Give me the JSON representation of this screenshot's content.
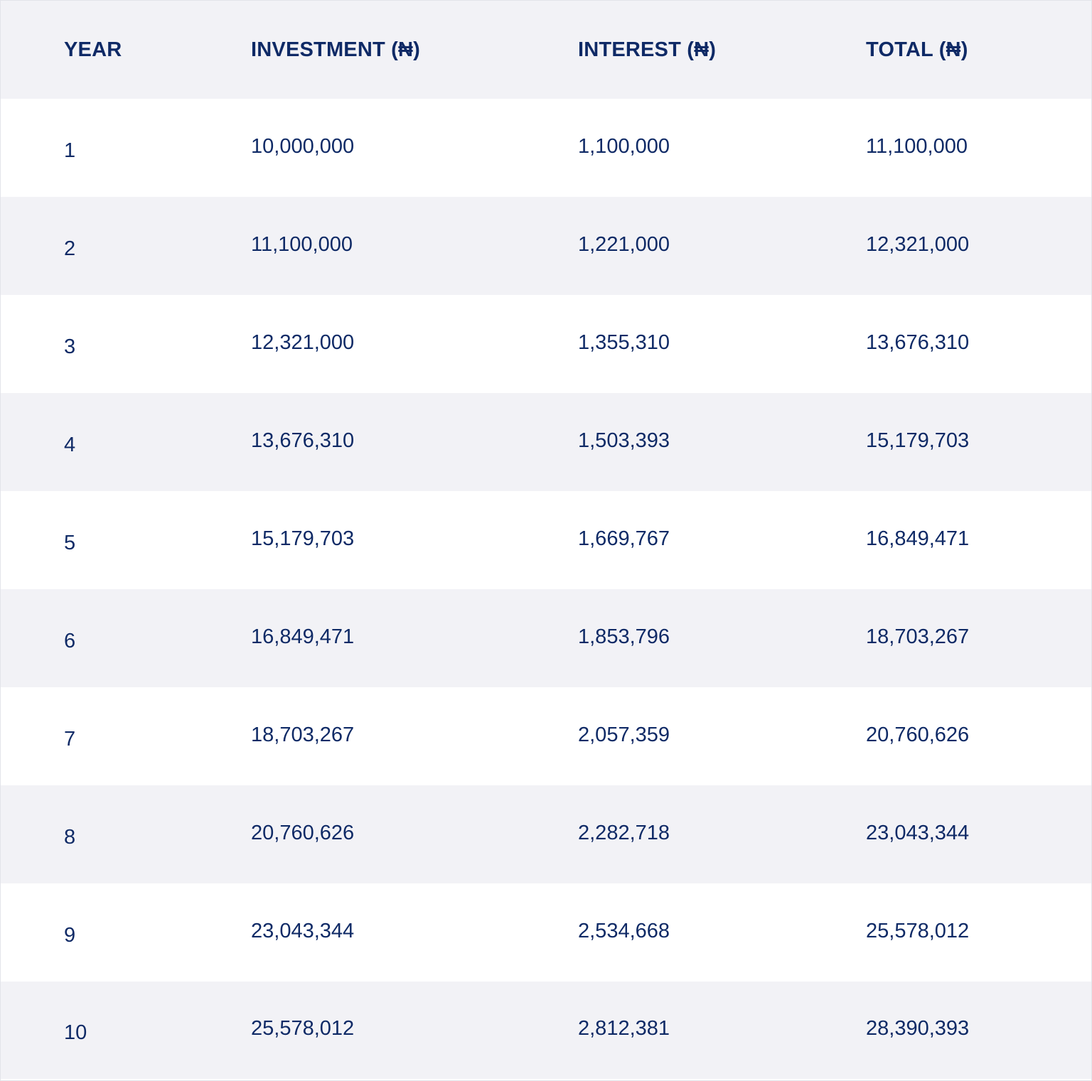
{
  "table": {
    "headers": [
      "YEAR",
      "INVESTMENT (₦)",
      "INTEREST (₦)",
      "TOTAL (₦)"
    ],
    "rows": [
      [
        "1",
        "10,000,000",
        "1,100,000",
        "11,100,000"
      ],
      [
        "2",
        "11,100,000",
        "1,221,000",
        "12,321,000"
      ],
      [
        "3",
        "12,321,000",
        "1,355,310",
        "13,676,310"
      ],
      [
        "4",
        "13,676,310",
        "1,503,393",
        "15,179,703"
      ],
      [
        "5",
        "15,179,703",
        "1,669,767",
        "16,849,471"
      ],
      [
        "6",
        "16,849,471",
        "1,853,796",
        "18,703,267"
      ],
      [
        "7",
        "18,703,267",
        "2,057,359",
        "20,760,626"
      ],
      [
        "8",
        "20,760,626",
        "2,282,718",
        "23,043,344"
      ],
      [
        "9",
        "23,043,344",
        "2,534,668",
        "25,578,012"
      ],
      [
        "10",
        "25,578,012",
        "2,812,381",
        "28,390,393"
      ]
    ]
  },
  "colors": {
    "text": "#0f2a66",
    "shaded_row": "#f2f2f6",
    "plain_row": "#ffffff"
  }
}
